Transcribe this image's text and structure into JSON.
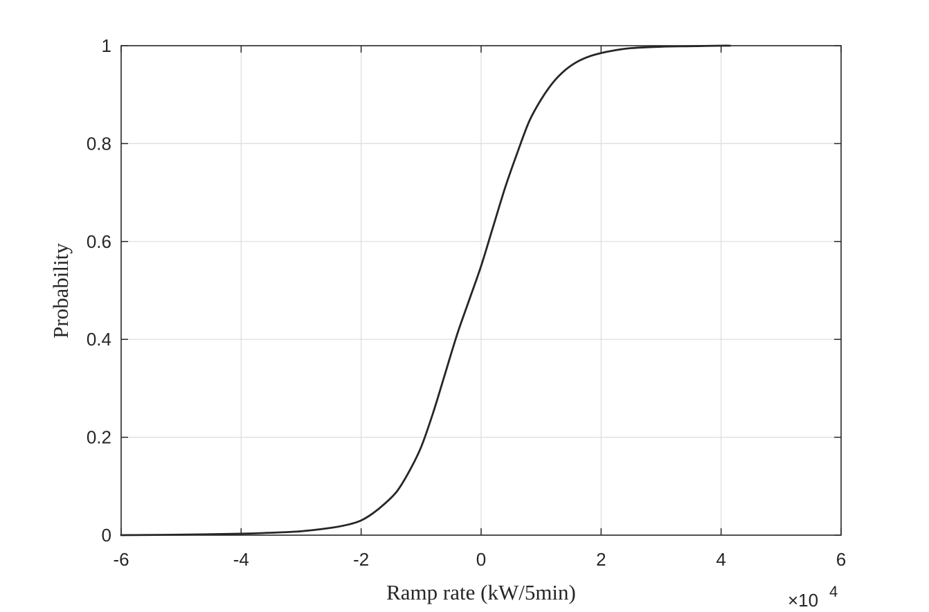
{
  "chart_data": {
    "type": "line",
    "title": "",
    "xlabel": "Ramp rate (kW/5min)",
    "ylabel": "Probability",
    "x_exponent": {
      "base": "×10",
      "power": "4"
    },
    "xlim": [
      -6,
      6
    ],
    "ylim": [
      0,
      1
    ],
    "x_ticks": [
      -6,
      -4,
      -2,
      0,
      2,
      4,
      6
    ],
    "x_tick_labels": [
      "-6",
      "-4",
      "-2",
      "0",
      "2",
      "4",
      "6"
    ],
    "y_ticks": [
      0,
      0.2,
      0.4,
      0.6,
      0.8,
      1
    ],
    "y_tick_labels": [
      "0",
      "0.2",
      "0.4",
      "0.6",
      "0.8",
      "1"
    ],
    "grid": true,
    "legend": "none",
    "line_color": "#262626",
    "series": [
      {
        "x": [
          -6,
          -5,
          -4,
          -3.5,
          -3,
          -2.5,
          -2.2,
          -2,
          -1.8,
          -1.6,
          -1.4,
          -1.2,
          -1.0,
          -0.8,
          -0.6,
          -0.4,
          -0.2,
          0,
          0.2,
          0.4,
          0.6,
          0.8,
          1.0,
          1.2,
          1.4,
          1.6,
          1.8,
          2.0,
          2.2,
          2.5,
          3.0,
          3.5,
          4.0,
          4.15
        ],
        "y": [
          0.0,
          0.001,
          0.003,
          0.005,
          0.008,
          0.015,
          0.022,
          0.03,
          0.045,
          0.065,
          0.09,
          0.13,
          0.18,
          0.25,
          0.33,
          0.41,
          0.48,
          0.55,
          0.63,
          0.71,
          0.78,
          0.845,
          0.89,
          0.925,
          0.95,
          0.967,
          0.978,
          0.985,
          0.99,
          0.995,
          0.998,
          0.999,
          1.0,
          1.0
        ]
      }
    ]
  }
}
